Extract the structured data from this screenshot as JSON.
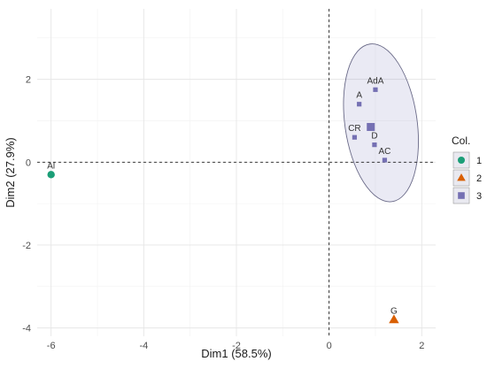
{
  "chart_data": {
    "type": "scatter",
    "title": "",
    "xlabel": "Dim1 (58.5%)",
    "ylabel": "Dim2 (27.9%)",
    "xlim": [
      -6.3,
      2.3
    ],
    "ylim": [
      -4.2,
      3.7
    ],
    "xticks": [
      -6,
      -4,
      -2,
      0,
      2
    ],
    "yticks": [
      -4,
      -2,
      0,
      2
    ],
    "grid": true,
    "reference_lines": {
      "x": 0,
      "y": 0,
      "style": "dashed"
    },
    "legend": {
      "title": "Col.",
      "position": "right"
    },
    "groups": [
      {
        "name": "1",
        "marker": "circle",
        "color": "#1b9e77"
      },
      {
        "name": "2",
        "marker": "triangle",
        "color": "#d95f02"
      },
      {
        "name": "3",
        "marker": "square",
        "color": "#7570b3"
      }
    ],
    "points": [
      {
        "label": "Al",
        "x": -6.0,
        "y": -0.3,
        "group": "1"
      },
      {
        "label": "G",
        "x": 1.4,
        "y": -3.8,
        "group": "2"
      },
      {
        "label": "AdA",
        "x": 1.0,
        "y": 1.75,
        "group": "3"
      },
      {
        "label": "A",
        "x": 0.65,
        "y": 1.4,
        "group": "3"
      },
      {
        "label": "CR",
        "x": 0.55,
        "y": 0.6,
        "group": "3"
      },
      {
        "label": "",
        "x": 0.9,
        "y": 0.85,
        "group": "3",
        "centroid": true
      },
      {
        "label": "D",
        "x": 0.98,
        "y": 0.42,
        "group": "3"
      },
      {
        "label": "AC",
        "x": 1.2,
        "y": 0.05,
        "group": "3"
      }
    ],
    "ellipses": [
      {
        "group": "3",
        "center": [
          1.12,
          0.95
        ],
        "semi_axes": [
          0.78,
          1.92
        ],
        "rotation_deg": 8,
        "fill": "#7570b3",
        "fill_opacity": 0.15,
        "stroke": "#6a6a88"
      }
    ]
  }
}
